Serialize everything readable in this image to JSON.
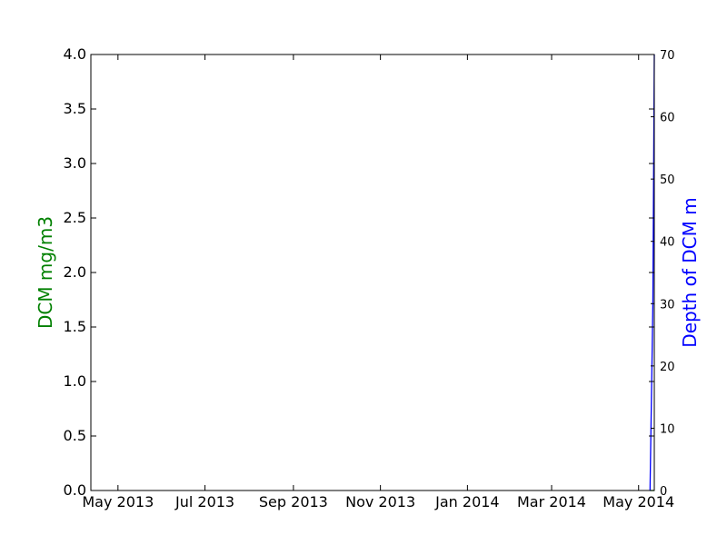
{
  "chart_data": {
    "type": "line",
    "title": "",
    "x_ticks": [
      "May 2013",
      "Jul 2013",
      "Sep 2013",
      "Nov 2013",
      "Jan 2014",
      "Mar 2014",
      "May 2014"
    ],
    "xlim": [
      "2013-04-12",
      "2014-05-12"
    ],
    "left_axis": {
      "label": "DCM mg/m3",
      "color": "#008000",
      "ylim": [
        0,
        4.0
      ],
      "ticks": [
        "0.0",
        "0.5",
        "1.0",
        "1.5",
        "2.0",
        "2.5",
        "3.0",
        "3.5",
        "4.0"
      ]
    },
    "right_axis": {
      "label": "Depth of DCM m",
      "color": "#0000ff",
      "ylim": [
        0,
        70
      ],
      "ticks": [
        "0",
        "10",
        "20",
        "30",
        "40",
        "50",
        "60",
        "70"
      ]
    },
    "series": [
      {
        "axis": "left",
        "color": "#008000",
        "x": [
          "2014-05-09",
          "2014-05-12"
        ],
        "y": [
          0.0,
          0.0
        ]
      },
      {
        "axis": "right",
        "color": "#0000ff",
        "x": [
          "2014-05-09",
          "2014-05-11",
          "2014-05-12"
        ],
        "y": [
          0,
          30,
          70
        ]
      }
    ],
    "grid": false
  }
}
